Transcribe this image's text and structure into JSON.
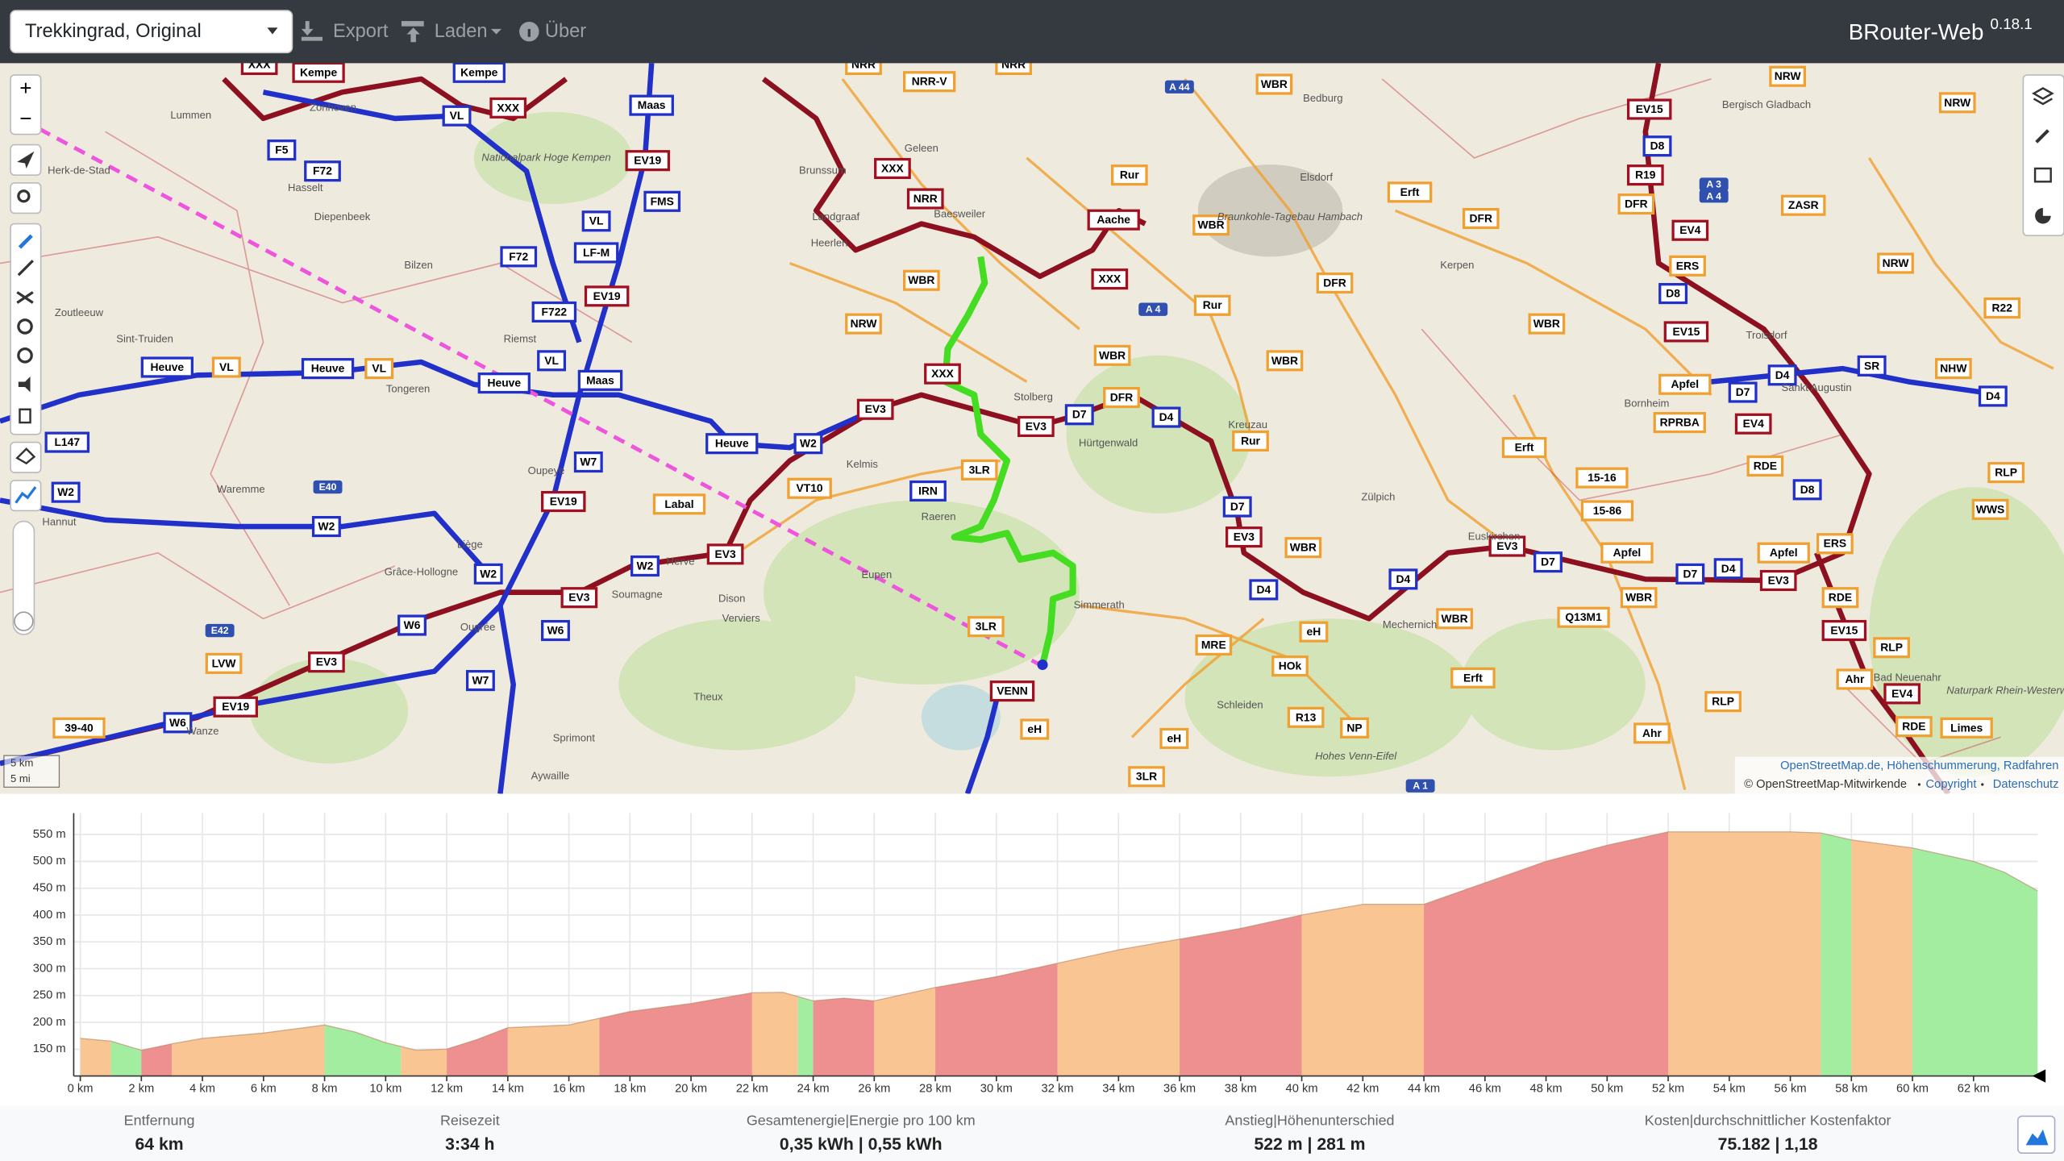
{
  "header": {
    "profile": "Trekkingrad, Original",
    "menu": [
      "Export",
      "Laden",
      "Über"
    ],
    "brand": "BRouter-Web",
    "version": "0.18.1"
  },
  "map": {
    "zoom": [
      "+",
      "−"
    ],
    "shields": [
      "XXX",
      "Kempe",
      "Kempe",
      "VL",
      "XXX",
      "Maas",
      "F5",
      "F72",
      "EV19",
      "FMS",
      "VL",
      "LF-M",
      "F72",
      "F722",
      "EV19",
      "Heuve",
      "VL",
      "Heuve",
      "VL",
      "Heuve",
      "VL",
      "Maas",
      "L147",
      "W2",
      "W7",
      "W2",
      "Heuve",
      "EV3",
      "EV19",
      "W2",
      "W2",
      "W2",
      "EV3",
      "EV3",
      "W6",
      "W6",
      "EV3",
      "LVW",
      "EV19",
      "W6",
      "39-40",
      "W7",
      "VT10",
      "Labal",
      "IRN",
      "3LR",
      "XXX",
      "NRR",
      "WBR",
      "NRW",
      "XXX",
      "EV3",
      "D7",
      "DFR",
      "D4",
      "Aache",
      "Rur",
      "XXX",
      "WBR",
      "Rur",
      "WBR",
      "WBR",
      "Rur",
      "D7",
      "EV3",
      "WBR",
      "D4",
      "3LR",
      "VENN",
      "eH",
      "MRE",
      "HOk",
      "eH",
      "R13",
      "NP",
      "eH",
      "3LR",
      "D4",
      "EV3",
      "D7",
      "WBR",
      "Q13M1",
      "Apfel",
      "WBR",
      "D7",
      "D4",
      "Apfel",
      "EV3",
      "ERS",
      "RDE",
      "EV15",
      "RLP",
      "Ahr",
      "EV4",
      "RDE",
      "Limes",
      "RLP",
      "Ahr",
      "Erft",
      "Erft",
      "15-16",
      "15-86",
      "DFR",
      "Erft",
      "DFR",
      "WBR",
      "EV15",
      "D8",
      "R19",
      "DFR",
      "EV4",
      "ERS",
      "D8",
      "EV15",
      "Apfel",
      "RPRBA",
      "EV4",
      "D7",
      "D4",
      "RDE",
      "D8",
      "ZASR",
      "NRW",
      "R22",
      "NRW",
      "NRW",
      "SR",
      "NHW",
      "D4",
      "RLP",
      "WWS",
      "WBR",
      "NRR",
      "NRR",
      "NRR-V"
    ],
    "places": [
      "Bergisch Gladbach",
      "Lummen",
      "Herk-de-Stad",
      "Hasselt",
      "Zonhoven",
      "Diepenbeek",
      "Bilzen",
      "Zoutleeuw",
      "Sint-Truiden",
      "Tongeren",
      "Riemst",
      "Waremme",
      "Hannut",
      "Oupeye",
      "Liège",
      "Grâce-Hollogne",
      "Soumagne",
      "Herve",
      "Dison",
      "Verviers",
      "Ougrée",
      "Theux",
      "Sprimont",
      "Aywaille",
      "Wanze",
      "Kelmis",
      "Raeren",
      "Eupen",
      "Simmerath",
      "Geleen",
      "Brunssum",
      "Landgraaf",
      "Heerlen",
      "Baesweiler",
      "Stolberg",
      "Hürtgenwald",
      "Kreuzau",
      "Zülpich",
      "Euskirchen",
      "Mechernich",
      "Schleiden",
      "Bedburg",
      "Elsdorf",
      "Kerpen",
      "Bornheim",
      "Troisdorf",
      "Sankt Augustin",
      "Bad Neuenahr",
      "Nationalpark Hoge Kempen",
      "Braunkohle-Tagebau Hambach",
      "Hohes Venn-Eifel",
      "Naturpark Rhein-Westerwald"
    ],
    "highways": [
      "A 44",
      "A 4",
      "A 3",
      "A 4",
      "A 1",
      "E40",
      "E42"
    ],
    "scale": [
      "5 km",
      "5 mi"
    ],
    "attribution": {
      "sources": "OpenStreetMap.de, Höhenschummerung, Radfahren",
      "copyright": "© OpenStreetMap-Mitwirkende",
      "links": [
        "Copyright",
        "Datenschutz"
      ]
    }
  },
  "profile": {
    "xlim": [
      0,
      64.1
    ],
    "ylim": [
      100,
      590
    ],
    "xticks": [
      {
        "value": 0,
        "label": "0 km"
      },
      {
        "value": 2,
        "label": "2 km"
      },
      {
        "value": 4,
        "label": "4 km"
      },
      {
        "value": 6,
        "label": "6 km"
      },
      {
        "value": 8,
        "label": "8 km"
      },
      {
        "value": 10,
        "label": "10 km"
      },
      {
        "value": 12,
        "label": "12 km"
      },
      {
        "value": 14,
        "label": "14 km"
      },
      {
        "value": 16,
        "label": "16 km"
      },
      {
        "value": 18,
        "label": "18 km"
      },
      {
        "value": 20,
        "label": "20 km"
      },
      {
        "value": 22,
        "label": "22 km"
      },
      {
        "value": 24,
        "label": "24 km"
      },
      {
        "value": 26,
        "label": "26 km"
      },
      {
        "value": 28,
        "label": "28 km"
      },
      {
        "value": 30,
        "label": "30 km"
      },
      {
        "value": 32,
        "label": "32 km"
      },
      {
        "value": 34,
        "label": "34 km"
      },
      {
        "value": 36,
        "label": "36 km"
      },
      {
        "value": 38,
        "label": "38 km"
      },
      {
        "value": 40,
        "label": "40 km"
      },
      {
        "value": 42,
        "label": "42 km"
      },
      {
        "value": 44,
        "label": "44 km"
      },
      {
        "value": 46,
        "label": "46 km"
      },
      {
        "value": 48,
        "label": "48 km"
      },
      {
        "value": 50,
        "label": "50 km"
      },
      {
        "value": 52,
        "label": "52 km"
      },
      {
        "value": 54,
        "label": "54 km"
      },
      {
        "value": 56,
        "label": "56 km"
      },
      {
        "value": 58,
        "label": "58 km"
      },
      {
        "value": 60,
        "label": "60 km"
      },
      {
        "value": 62,
        "label": "62 km"
      }
    ],
    "yticks": [
      {
        "value": 150,
        "label": "150 m"
      },
      {
        "value": 200,
        "label": "200 m"
      },
      {
        "value": 250,
        "label": "250 m"
      },
      {
        "value": 300,
        "label": "300 m"
      },
      {
        "value": 350,
        "label": "350 m"
      },
      {
        "value": 400,
        "label": "400 m"
      },
      {
        "value": 450,
        "label": "450 m"
      },
      {
        "value": 500,
        "label": "500 m"
      },
      {
        "value": 550,
        "label": "550 m"
      }
    ],
    "x": [
      0,
      1,
      2,
      3,
      4,
      6,
      8,
      9,
      10,
      11,
      12,
      13,
      14,
      16,
      18,
      20,
      22,
      23,
      24,
      25,
      26,
      28,
      30,
      32,
      34,
      36,
      38,
      40,
      42,
      44,
      46,
      48,
      50,
      52,
      54,
      56,
      57,
      58,
      60,
      62,
      63,
      64.1
    ],
    "elevation": [
      170,
      165,
      148,
      160,
      170,
      180,
      195,
      182,
      162,
      148,
      150,
      168,
      190,
      195,
      220,
      235,
      255,
      256,
      240,
      245,
      240,
      265,
      285,
      310,
      335,
      355,
      375,
      400,
      420,
      420,
      460,
      500,
      530,
      555,
      555,
      555,
      553,
      540,
      525,
      500,
      480,
      445
    ],
    "segments": [
      {
        "from": 0,
        "to": 1,
        "color": "#f9c592"
      },
      {
        "from": 1,
        "to": 2,
        "color": "#a3eda0"
      },
      {
        "from": 2,
        "to": 3,
        "color": "#ee9090"
      },
      {
        "from": 3,
        "to": 8,
        "color": "#f9c592"
      },
      {
        "from": 8,
        "to": 10.5,
        "color": "#a3eda0"
      },
      {
        "from": 10.5,
        "to": 12,
        "color": "#f9c592"
      },
      {
        "from": 12,
        "to": 14,
        "color": "#ee9090"
      },
      {
        "from": 14,
        "to": 17,
        "color": "#f9c592"
      },
      {
        "from": 17,
        "to": 22,
        "color": "#ee9090"
      },
      {
        "from": 22,
        "to": 23.5,
        "color": "#f9c592"
      },
      {
        "from": 23.5,
        "to": 24,
        "color": "#a3eda0"
      },
      {
        "from": 24,
        "to": 26,
        "color": "#ee9090"
      },
      {
        "from": 26,
        "to": 28,
        "color": "#f9c592"
      },
      {
        "from": 28,
        "to": 32,
        "color": "#ee9090"
      },
      {
        "from": 32,
        "to": 36,
        "color": "#f9c592"
      },
      {
        "from": 36,
        "to": 40,
        "color": "#ee9090"
      },
      {
        "from": 40,
        "to": 44,
        "color": "#f9c592"
      },
      {
        "from": 44,
        "to": 52,
        "color": "#ee9090"
      },
      {
        "from": 52,
        "to": 57,
        "color": "#f9c592"
      },
      {
        "from": 57,
        "to": 58,
        "color": "#a3eda0"
      },
      {
        "from": 58,
        "to": 60,
        "color": "#f9c592"
      },
      {
        "from": 60,
        "to": 64.1,
        "color": "#a3eda0"
      }
    ]
  },
  "stats": [
    {
      "label": "Entfernung",
      "value": "64 km"
    },
    {
      "label": "Reisezeit",
      "value": "3:34 h"
    },
    {
      "label": "Gesamtenergie|Energie pro 100 km",
      "value": "0,35 kWh | 0,55 kWh"
    },
    {
      "label": "Anstieg|Höhenunterschied",
      "value": "522 m | 281 m"
    },
    {
      "label": "Kosten|durchschnittlicher Kostenfaktor",
      "value": "75.182 | 1,18"
    }
  ]
}
